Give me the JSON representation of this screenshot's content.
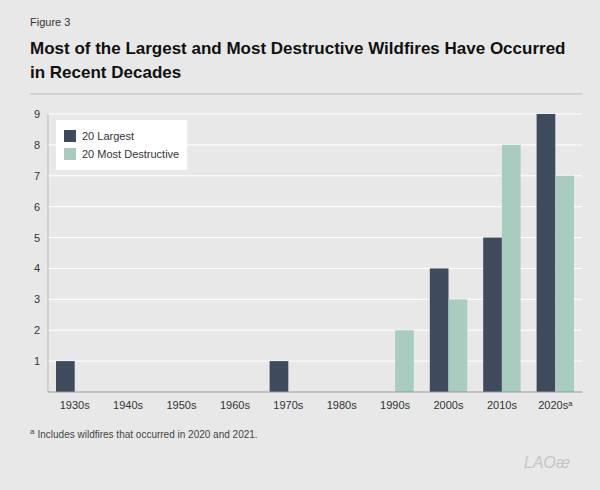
{
  "chart_data": {
    "type": "bar",
    "title": "Most of the Largest and Most Destructive Wildfires Have Occurred in Recent Decades",
    "categories": [
      "1930s",
      "1940s",
      "1950s",
      "1960s",
      "1970s",
      "1980s",
      "1990s",
      "2000s",
      "2010s",
      "2020sᵃ"
    ],
    "series": [
      {
        "name": "20 Largest",
        "color": "#3d4b5c",
        "values": [
          1,
          0,
          0,
          0,
          1,
          0,
          0,
          4,
          5,
          9
        ]
      },
      {
        "name": "20 Most Destructive",
        "color": "#a8cdc0",
        "values": [
          0,
          0,
          0,
          0,
          0,
          0,
          2,
          3,
          8,
          7
        ]
      }
    ],
    "ylim": [
      0,
      9
    ],
    "yticks": [
      1,
      2,
      3,
      4,
      5,
      6,
      7,
      8,
      9
    ],
    "grid": true,
    "legend": "upper left",
    "annotations": [
      "Figure 3",
      "a",
      "Includes wildfires that occurred in 2020 and 2021.",
      "LAOᴂ"
    ]
  }
}
